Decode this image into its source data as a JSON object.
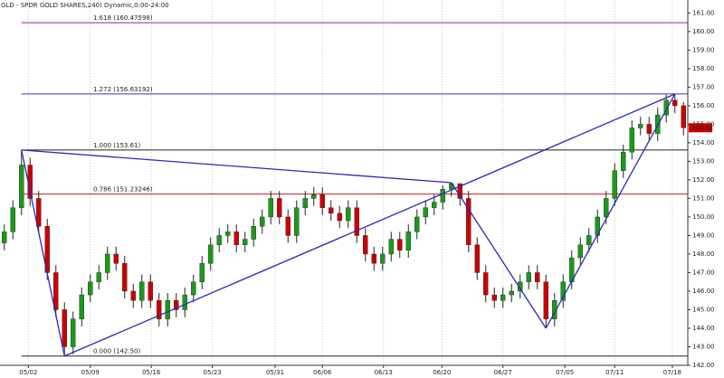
{
  "chart_data": {
    "type": "candlestick",
    "title": "GLD - SPDR GOLD SHARES,240) Dynamic,0:00-24:00",
    "up_color": "#1a9a1a",
    "down_color": "#cc0000",
    "pattern_color": "#2a2ab8",
    "xlim": [
      -0.5,
      79.5
    ],
    "ylim": [
      142,
      161.7
    ],
    "xticks": [
      {
        "value": 2.8,
        "label": "05/02"
      },
      {
        "value": 10,
        "label": "05/09"
      },
      {
        "value": 17.1,
        "label": "05/16"
      },
      {
        "value": 24.2,
        "label": "05/23"
      },
      {
        "value": 31.5,
        "label": "05/31"
      },
      {
        "value": 37,
        "label": "06/06"
      },
      {
        "value": 44.1,
        "label": "06/13"
      },
      {
        "value": 50.9,
        "label": "06/20"
      },
      {
        "value": 58,
        "label": "06/27"
      },
      {
        "value": 65.2,
        "label": "07/05"
      },
      {
        "value": 71,
        "label": "07/11"
      },
      {
        "value": 77.7,
        "label": "07/18"
      }
    ],
    "yticks": [
      {
        "value": 142,
        "label": "142.00"
      },
      {
        "value": 143,
        "label": "143.00"
      },
      {
        "value": 144,
        "label": "144.00"
      },
      {
        "value": 145,
        "label": "145.00"
      },
      {
        "value": 146,
        "label": "146.00"
      },
      {
        "value": 147,
        "label": "147.00"
      },
      {
        "value": 148,
        "label": "148.00"
      },
      {
        "value": 149,
        "label": "149.00"
      },
      {
        "value": 150,
        "label": "150.00"
      },
      {
        "value": 151,
        "label": "151.00"
      },
      {
        "value": 152,
        "label": "152.00"
      },
      {
        "value": 153,
        "label": "153.00"
      },
      {
        "value": 154,
        "label": "154.00"
      },
      {
        "value": 155,
        "label": "155.00"
      },
      {
        "value": 156,
        "label": "156.00"
      },
      {
        "value": 157,
        "label": "157.00"
      },
      {
        "value": 158,
        "label": "158.00"
      },
      {
        "value": 159,
        "label": "159.00"
      },
      {
        "value": 160,
        "label": "160.00"
      },
      {
        "value": 161,
        "label": "161.00"
      }
    ],
    "fib_levels": [
      {
        "label": "1.618 (160.47598)",
        "value": 160.47598,
        "color": "#8b2a8b"
      },
      {
        "label": "1.272 (156.63192)",
        "value": 156.63192,
        "color": "#3a3aa8"
      },
      {
        "label": "1.000 (153.61)",
        "value": 153.61,
        "color": "#222222"
      },
      {
        "label": "0.786 (151.23246)",
        "value": 151.23246,
        "color": "#c02020"
      },
      {
        "label": "0.000 (142.50)",
        "value": 142.5,
        "color": "#222222"
      }
    ],
    "pattern": {
      "x": [
        2,
        7,
        52,
        63,
        78
      ],
      "y": [
        153.61,
        142.5,
        151.85,
        144.0,
        156.63
      ]
    },
    "open": [
      148.6,
      149.2,
      150.5,
      152.8,
      151.0,
      149.5,
      147.0,
      145.0,
      143.0,
      144.5,
      145.8,
      146.5,
      147.0,
      148.0,
      147.5,
      146.0,
      145.5,
      146.5,
      145.5,
      144.5,
      145.5,
      145.0,
      145.8,
      146.5,
      147.5,
      148.5,
      149.0,
      149.2,
      148.5,
      148.8,
      149.5,
      150.0,
      151.0,
      150.0,
      149.0,
      150.5,
      151.0,
      151.2,
      150.5,
      150.2,
      149.8,
      150.5,
      149.0,
      148.0,
      147.5,
      148.0,
      148.8,
      148.2,
      149.2,
      150.0,
      150.5,
      150.8,
      151.5,
      151.8,
      151.0,
      148.5,
      147.0,
      145.8,
      145.5,
      145.8,
      146.0,
      146.5,
      147.0,
      146.5,
      144.5,
      145.5,
      146.5,
      147.8,
      148.5,
      149.0,
      150.0,
      151.0,
      152.5,
      153.5,
      154.8,
      155.0,
      154.5,
      155.5,
      156.3,
      156.0
    ],
    "high": [
      149.6,
      150.9,
      153.61,
      153.2,
      151.4,
      149.9,
      147.4,
      145.4,
      144.9,
      146.2,
      146.9,
      147.4,
      148.4,
      148.4,
      147.9,
      146.4,
      146.9,
      146.9,
      145.9,
      145.9,
      145.9,
      146.2,
      146.9,
      147.9,
      148.9,
      149.4,
      149.6,
      149.6,
      149.2,
      149.9,
      150.4,
      151.4,
      151.4,
      150.4,
      150.9,
      151.4,
      151.6,
      151.6,
      150.9,
      150.6,
      150.9,
      150.9,
      149.4,
      148.4,
      148.4,
      149.2,
      149.2,
      149.6,
      150.4,
      150.9,
      151.2,
      151.7,
      151.85,
      151.8,
      151.4,
      148.9,
      147.4,
      146.2,
      146.2,
      146.4,
      146.9,
      147.4,
      147.4,
      146.9,
      145.9,
      146.9,
      148.2,
      148.9,
      149.4,
      150.4,
      151.4,
      152.9,
      153.9,
      155.2,
      155.4,
      155.4,
      155.9,
      156.6,
      156.63,
      156.2
    ],
    "low": [
      148.2,
      148.8,
      150.1,
      150.6,
      149.1,
      146.6,
      144.6,
      142.5,
      142.6,
      144.1,
      145.4,
      146.1,
      146.6,
      147.1,
      145.6,
      145.1,
      145.1,
      145.1,
      144.1,
      144.1,
      144.6,
      144.6,
      145.4,
      146.1,
      147.1,
      148.1,
      148.6,
      148.1,
      148.1,
      148.4,
      149.1,
      149.6,
      149.6,
      148.6,
      148.6,
      150.1,
      150.6,
      150.1,
      149.8,
      149.4,
      149.4,
      148.6,
      147.6,
      147.1,
      147.1,
      147.6,
      147.8,
      147.8,
      148.8,
      149.6,
      150.1,
      150.4,
      151.1,
      150.6,
      148.1,
      146.6,
      145.4,
      145.1,
      145.1,
      145.4,
      145.6,
      146.1,
      146.1,
      144.0,
      144.1,
      145.1,
      146.1,
      147.4,
      148.1,
      148.6,
      149.6,
      150.6,
      152.1,
      153.1,
      154.4,
      154.1,
      154.1,
      155.1,
      155.6,
      154.4
    ],
    "close": [
      149.2,
      150.5,
      152.8,
      151.0,
      149.5,
      147.0,
      145.0,
      143.0,
      144.5,
      145.8,
      146.5,
      147.0,
      148.0,
      147.5,
      146.0,
      145.5,
      146.5,
      145.5,
      144.5,
      145.5,
      145.0,
      145.8,
      146.5,
      147.5,
      148.5,
      149.0,
      149.2,
      148.5,
      148.8,
      149.5,
      150.0,
      151.0,
      150.0,
      149.0,
      150.5,
      151.0,
      151.2,
      150.5,
      150.2,
      149.8,
      150.5,
      149.0,
      148.0,
      147.5,
      148.0,
      148.8,
      148.2,
      149.2,
      150.0,
      150.5,
      150.8,
      151.5,
      151.8,
      151.0,
      148.5,
      147.0,
      145.8,
      145.5,
      145.8,
      146.0,
      146.5,
      147.0,
      146.5,
      144.5,
      145.5,
      146.5,
      147.8,
      148.5,
      149.0,
      150.0,
      151.0,
      152.5,
      153.5,
      154.8,
      155.0,
      154.5,
      155.5,
      156.3,
      156.0,
      154.81
    ]
  }
}
